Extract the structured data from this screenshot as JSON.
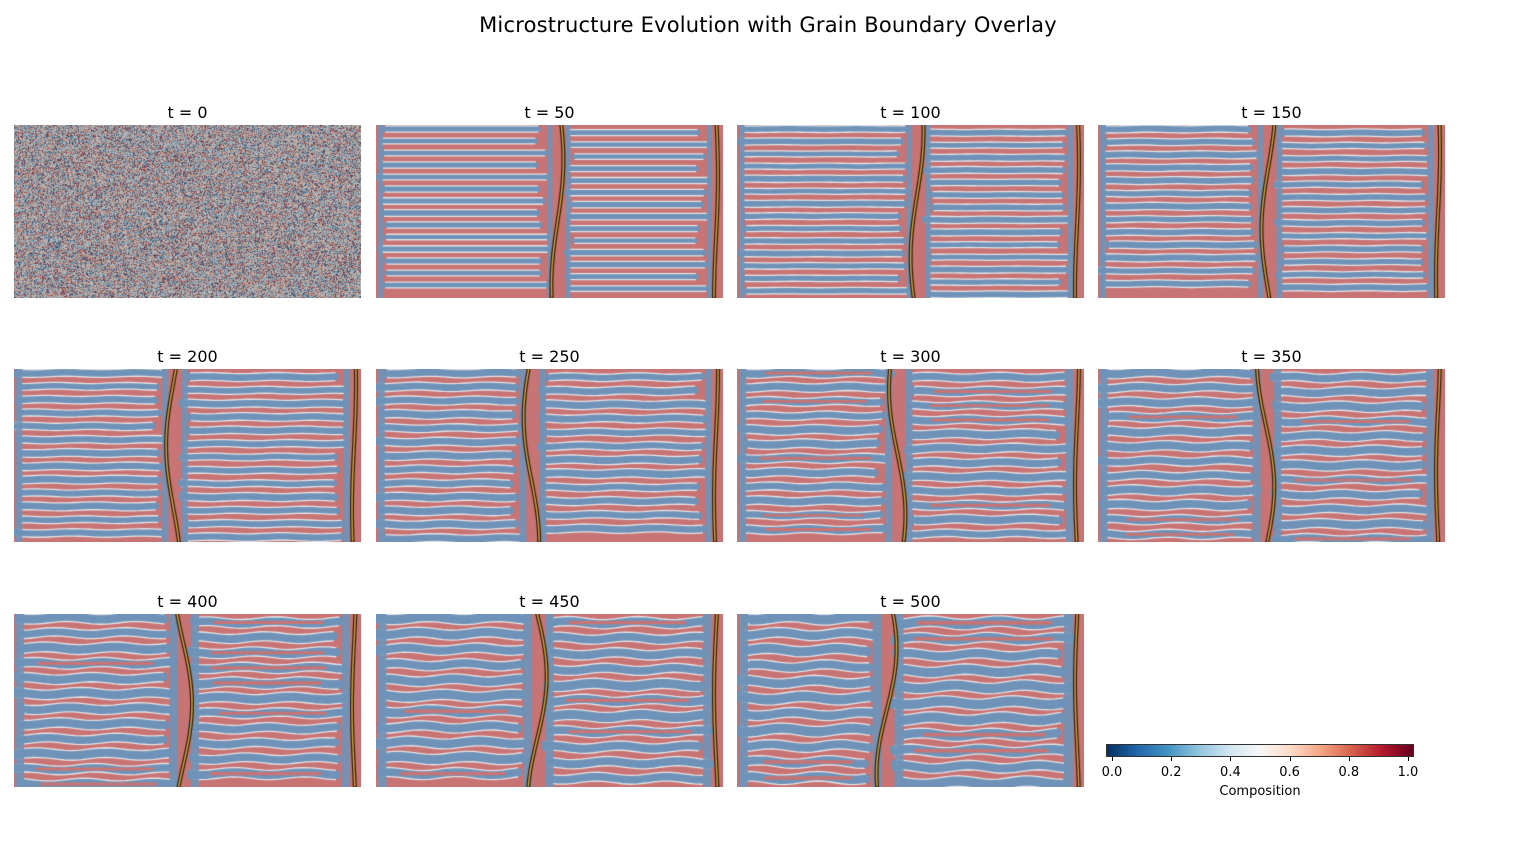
{
  "figure": {
    "title": "Microstructure Evolution with Grain Boundary Overlay"
  },
  "chart_data": {
    "type": "heatmap",
    "title": "Microstructure Evolution with Grain Boundary Overlay",
    "panels": [
      {
        "title": "t = 0",
        "t": 0,
        "state": "random-noise"
      },
      {
        "title": "t = 50",
        "t": 50,
        "state": "lamellar"
      },
      {
        "title": "t = 100",
        "t": 100,
        "state": "lamellar"
      },
      {
        "title": "t = 150",
        "t": 150,
        "state": "lamellar"
      },
      {
        "title": "t = 200",
        "t": 200,
        "state": "lamellar"
      },
      {
        "title": "t = 250",
        "t": 250,
        "state": "lamellar"
      },
      {
        "title": "t = 300",
        "t": 300,
        "state": "lamellar"
      },
      {
        "title": "t = 350",
        "t": 350,
        "state": "lamellar"
      },
      {
        "title": "t = 400",
        "t": 400,
        "state": "lamellar"
      },
      {
        "title": "t = 450",
        "t": 450,
        "state": "lamellar"
      },
      {
        "title": "t = 500",
        "t": 500,
        "state": "lamellar"
      }
    ],
    "colorbar": {
      "label": "Composition",
      "colormap": "RdBu_r",
      "range": [
        0.0,
        1.0
      ],
      "ticks": [
        0.0,
        0.2,
        0.4,
        0.6,
        0.8,
        1.0
      ],
      "tick_labels": [
        "0.0",
        "0.2",
        "0.4",
        "0.6",
        "0.8",
        "1.0"
      ],
      "orientation": "horizontal"
    }
  },
  "colors": {
    "phase_red": "#c87474",
    "phase_blue": "#6f93b8",
    "interface": "#f5f5f5",
    "grain_boundary": "#1a1208"
  }
}
